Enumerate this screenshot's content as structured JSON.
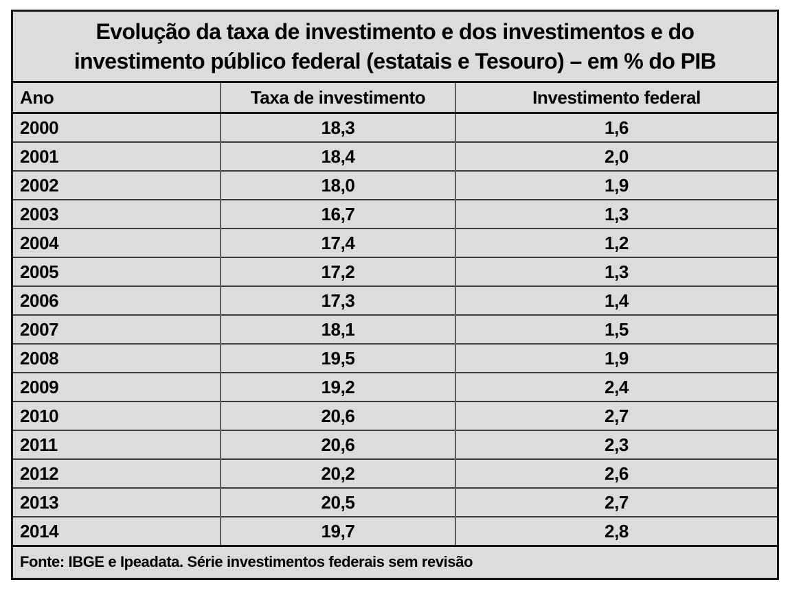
{
  "table": {
    "title_line1": "Evolução da taxa de investimento e dos investimentos e do",
    "title_line2": "investimento público federal (estatais e Tesouro) – em % do PIB",
    "columns": [
      "Ano",
      "Taxa de investimento",
      "Investimento federal"
    ],
    "rows": [
      [
        "2000",
        "18,3",
        "1,6"
      ],
      [
        "2001",
        "18,4",
        "2,0"
      ],
      [
        "2002",
        "18,0",
        "1,9"
      ],
      [
        "2003",
        "16,7",
        "1,3"
      ],
      [
        "2004",
        "17,4",
        "1,2"
      ],
      [
        "2005",
        "17,2",
        "1,3"
      ],
      [
        "2006",
        "17,3",
        "1,4"
      ],
      [
        "2007",
        "18,1",
        "1,5"
      ],
      [
        "2008",
        "19,5",
        "1,9"
      ],
      [
        "2009",
        "19,2",
        "2,4"
      ],
      [
        "2010",
        "20,6",
        "2,7"
      ],
      [
        "2011",
        "20,6",
        "2,3"
      ],
      [
        "2012",
        "20,2",
        "2,6"
      ],
      [
        "2013",
        "20,5",
        "2,7"
      ],
      [
        "2014",
        "19,7",
        "2,8"
      ]
    ],
    "footer": "Fonte: IBGE e Ipeadata. Série investimentos federais sem revisão"
  },
  "colors": {
    "background": "#dcdcdc",
    "border": "#161616",
    "text": "#000000",
    "page_background": "#ffffff"
  },
  "chart_data": {
    "type": "table",
    "title": "Evolução da taxa de investimento e dos investimentos e do investimento público federal (estatais e Tesouro) – em % do PIB",
    "categories": [
      "2000",
      "2001",
      "2002",
      "2003",
      "2004",
      "2005",
      "2006",
      "2007",
      "2008",
      "2009",
      "2010",
      "2011",
      "2012",
      "2013",
      "2014"
    ],
    "series": [
      {
        "name": "Taxa de investimento",
        "values": [
          18.3,
          18.4,
          18.0,
          16.7,
          17.4,
          17.2,
          17.3,
          18.1,
          19.5,
          19.2,
          20.6,
          20.6,
          20.2,
          20.5,
          19.7
        ]
      },
      {
        "name": "Investimento federal",
        "values": [
          1.6,
          2.0,
          1.9,
          1.3,
          1.2,
          1.3,
          1.4,
          1.5,
          1.9,
          2.4,
          2.7,
          2.3,
          2.6,
          2.7,
          2.8
        ]
      }
    ],
    "unit": "% do PIB",
    "source": "Fonte: IBGE e Ipeadata. Série investimentos federais sem revisão"
  }
}
